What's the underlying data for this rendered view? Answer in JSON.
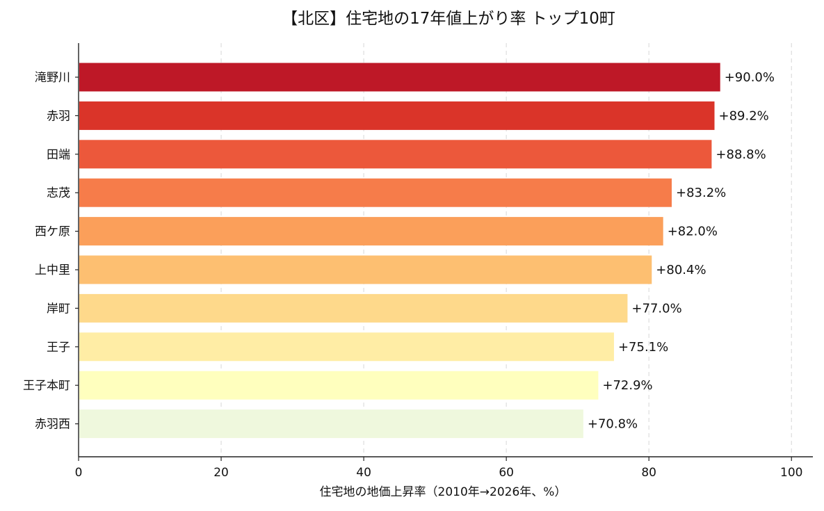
{
  "chart_data": {
    "type": "bar",
    "orientation": "horizontal",
    "title": "【北区】住宅地の17年値上がり率 トップ10町",
    "xlabel": "住宅地の地価上昇率（2010年→2026年、%）",
    "ylabel": "",
    "xlim": [
      0,
      103
    ],
    "xticks": [
      0,
      20,
      40,
      60,
      80,
      100
    ],
    "grid": {
      "x": true,
      "y": false,
      "style": "dashed"
    },
    "categories": [
      "滝野川",
      "赤羽",
      "田端",
      "志茂",
      "西ケ原",
      "上中里",
      "岸町",
      "王子",
      "王子本町",
      "赤羽西"
    ],
    "values": [
      90.0,
      89.2,
      88.8,
      83.2,
      82.0,
      80.4,
      77.0,
      75.1,
      72.9,
      70.8
    ],
    "value_labels": [
      "+90.0%",
      "+89.2%",
      "+88.8%",
      "+83.2%",
      "+82.0%",
      "+80.4%",
      "+77.0%",
      "+75.1%",
      "+72.9%",
      "+70.8%"
    ],
    "colors": [
      "#be1827",
      "#da3429",
      "#ec583b",
      "#f67c4a",
      "#fb9f5a",
      "#fdbf71",
      "#fed98b",
      "#ffeda5",
      "#ffffbe",
      "#eff8dd"
    ]
  }
}
